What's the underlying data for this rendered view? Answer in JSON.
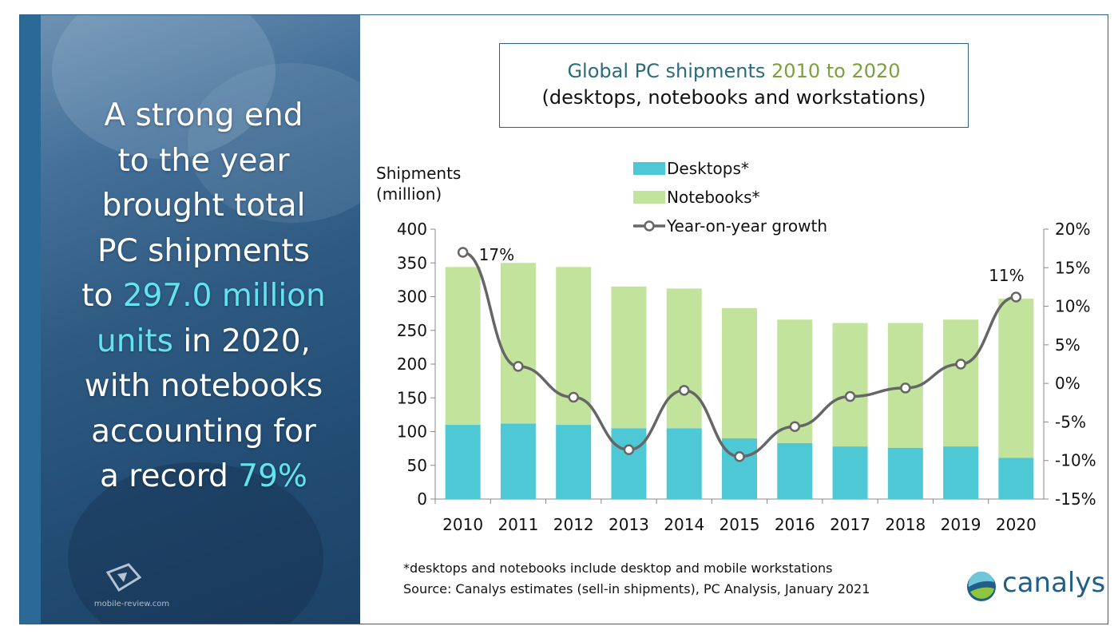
{
  "headline": {
    "line1": "A strong end",
    "line2": "to the year",
    "line3": "brought total",
    "line4": "PC shipments",
    "line5_pre": "to ",
    "line5_hl": "297.0 million",
    "line6_hl": "units",
    "line6_post": " in 2020,",
    "line7": "with notebooks",
    "line8": "accounting for",
    "line9_pre": "a record ",
    "line9_hl": "79%"
  },
  "watermark": {
    "text": "mobile-review.com"
  },
  "title": {
    "main": "Global PC shipments",
    "years": "2010 to 2020",
    "subtitle": "(desktops, notebooks and workstations)"
  },
  "footnote": {
    "line1": "*desktops and notebooks include desktop and mobile workstations",
    "line2": "Source: Canalys estimates (sell-in shipments), PC Analysis, January 2021"
  },
  "logo": {
    "text": "canalys"
  },
  "colors": {
    "desktops": "#4ec8d4",
    "notebooks": "#c2e39c",
    "growth": "#666666",
    "accent_cyan": "#63e3ef"
  },
  "chart_data": {
    "type": "bar",
    "stacked": true,
    "categories": [
      "2010",
      "2011",
      "2012",
      "2013",
      "2014",
      "2015",
      "2016",
      "2017",
      "2018",
      "2019",
      "2020"
    ],
    "series": [
      {
        "name": "Desktops*",
        "values": [
          110,
          112,
          110,
          105,
          105,
          90,
          83,
          78,
          76,
          78,
          61
        ]
      },
      {
        "name": "Notebooks*",
        "values": [
          234,
          238,
          234,
          210,
          207,
          193,
          183,
          183,
          185,
          188,
          236
        ]
      }
    ],
    "line_series": {
      "name": "Year-on-year growth",
      "axis": "right",
      "values": [
        17,
        2.2,
        -1.8,
        -8.6,
        -0.9,
        -9.5,
        -5.6,
        -1.7,
        -0.6,
        2.5,
        11.2
      ]
    },
    "data_labels": [
      {
        "index": 0,
        "text": "17%"
      },
      {
        "index": 10,
        "text": "11%"
      }
    ],
    "ylabel_line1": "Shipments",
    "ylabel_line2": "(million)",
    "ylim": [
      0,
      400
    ],
    "yticks": [
      0,
      50,
      100,
      150,
      200,
      250,
      300,
      350,
      400
    ],
    "y2lim": [
      -15,
      20
    ],
    "y2ticks": [
      "-15%",
      "-10%",
      "-5%",
      "0%",
      "5%",
      "10%",
      "15%",
      "20%"
    ],
    "legend_position": "top-center",
    "grid": false
  }
}
